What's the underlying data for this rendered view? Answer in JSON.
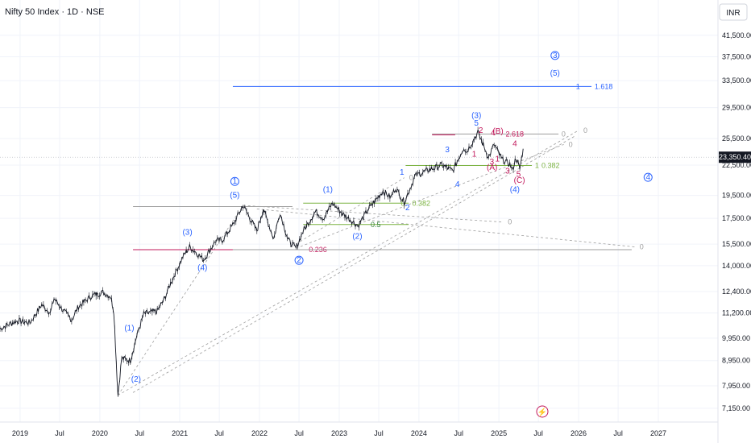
{
  "header": {
    "title": "Nifty 50 Index · 1D · NSE",
    "currency": "INR"
  },
  "colors": {
    "price": "#131722",
    "blue": "#2962ff",
    "red": "#c2185b",
    "green": "#7cb342",
    "gray": "#9e9e9e"
  },
  "chart_data": {
    "type": "line",
    "scale": "log",
    "ylim": [
      6700,
      49000
    ],
    "xlim": [
      "2018-10-01",
      "2027-10-01"
    ],
    "current_price": "23,350.40",
    "current_value": 23350.4,
    "y_ticks": [
      {
        "v": 41500,
        "label": "41,500.00"
      },
      {
        "v": 37500,
        "label": "37,500.00"
      },
      {
        "v": 33500,
        "label": "33,500.00"
      },
      {
        "v": 29500,
        "label": "29,500.00"
      },
      {
        "v": 25500,
        "label": "25,500.00"
      },
      {
        "v": 22500,
        "label": "22,500.00"
      },
      {
        "v": 19500,
        "label": "19,500.00"
      },
      {
        "v": 17500,
        "label": "17,500.00"
      },
      {
        "v": 15500,
        "label": "15,500.00"
      },
      {
        "v": 14000,
        "label": "14,000.00"
      },
      {
        "v": 12400,
        "label": "12,400.00"
      },
      {
        "v": 11200,
        "label": "11,200.00"
      },
      {
        "v": 9950,
        "label": "9,950.00"
      },
      {
        "v": 8950,
        "label": "8,950.00"
      },
      {
        "v": 7950,
        "label": "7,950.00"
      },
      {
        "v": 7150,
        "label": "7,150.00"
      }
    ],
    "x_ticks": [
      {
        "d": "2019-01-01",
        "label": "2019"
      },
      {
        "d": "2019-07-01",
        "label": "Jul"
      },
      {
        "d": "2020-01-01",
        "label": "2020"
      },
      {
        "d": "2020-07-01",
        "label": "Jul"
      },
      {
        "d": "2021-01-01",
        "label": "2021"
      },
      {
        "d": "2021-07-01",
        "label": "Jul"
      },
      {
        "d": "2022-01-01",
        "label": "2022"
      },
      {
        "d": "2022-07-01",
        "label": "Jul"
      },
      {
        "d": "2023-01-01",
        "label": "2023"
      },
      {
        "d": "2023-07-01",
        "label": "Jul"
      },
      {
        "d": "2024-01-01",
        "label": "2024"
      },
      {
        "d": "2024-07-01",
        "label": "Jul"
      },
      {
        "d": "2025-01-01",
        "label": "2025"
      },
      {
        "d": "2025-07-01",
        "label": "Jul"
      },
      {
        "d": "2026-01-01",
        "label": "2026"
      },
      {
        "d": "2026-07-01",
        "label": "Jul"
      },
      {
        "d": "2027-01-01",
        "label": "2027"
      }
    ],
    "price_path": [
      [
        "2018-10-01",
        10400
      ],
      [
        "2018-11-15",
        10650
      ],
      [
        "2018-12-20",
        10800
      ],
      [
        "2019-02-15",
        10700
      ],
      [
        "2019-04-10",
        11650
      ],
      [
        "2019-05-20",
        11200
      ],
      [
        "2019-06-05",
        12000
      ],
      [
        "2019-07-20",
        11300
      ],
      [
        "2019-08-25",
        10850
      ],
      [
        "2019-09-25",
        11550
      ],
      [
        "2019-11-25",
        12150
      ],
      [
        "2020-01-15",
        12350
      ],
      [
        "2020-02-20",
        12100
      ],
      [
        "2020-03-05",
        11300
      ],
      [
        "2020-03-24",
        7600
      ],
      [
        "2020-04-10",
        9050
      ],
      [
        "2020-05-20",
        8950
      ],
      [
        "2020-06-15",
        9950
      ],
      [
        "2020-07-20",
        11150
      ],
      [
        "2020-09-20",
        11300
      ],
      [
        "2020-10-20",
        11900
      ],
      [
        "2020-11-20",
        12900
      ],
      [
        "2021-01-15",
        14600
      ],
      [
        "2021-02-15",
        15300
      ],
      [
        "2021-03-10",
        15000
      ],
      [
        "2021-04-20",
        14400
      ],
      [
        "2021-06-15",
        15750
      ],
      [
        "2021-07-15",
        15800
      ],
      [
        "2021-08-30",
        16900
      ],
      [
        "2021-10-18",
        18600
      ],
      [
        "2021-12-20",
        16500
      ],
      [
        "2022-01-18",
        18300
      ],
      [
        "2022-03-07",
        15900
      ],
      [
        "2022-04-05",
        18000
      ],
      [
        "2022-05-12",
        15800
      ],
      [
        "2022-06-17",
        15200
      ],
      [
        "2022-07-20",
        16500
      ],
      [
        "2022-09-15",
        18100
      ],
      [
        "2022-10-20",
        17500
      ],
      [
        "2022-12-01",
        18800
      ],
      [
        "2023-01-15",
        17900
      ],
      [
        "2023-02-28",
        17300
      ],
      [
        "2023-03-28",
        16900
      ],
      [
        "2023-05-15",
        18300
      ],
      [
        "2023-07-20",
        19900
      ],
      [
        "2023-08-25",
        19300
      ],
      [
        "2023-09-15",
        20200
      ],
      [
        "2023-10-26",
        18900
      ],
      [
        "2023-12-15",
        21400
      ],
      [
        "2024-02-15",
        22000
      ],
      [
        "2024-04-15",
        22500
      ],
      [
        "2024-06-04",
        21900
      ],
      [
        "2024-07-25",
        24500
      ],
      [
        "2024-08-05",
        23900
      ],
      [
        "2024-09-27",
        26280
      ],
      [
        "2024-11-15",
        23300
      ],
      [
        "2024-12-10",
        24800
      ],
      [
        "2025-01-15",
        23100
      ],
      [
        "2025-02-20",
        22600
      ],
      [
        "2025-03-04",
        21950
      ],
      [
        "2025-03-20",
        23300
      ],
      [
        "2025-04-07",
        22100
      ],
      [
        "2025-04-22",
        24300
      ]
    ],
    "h_levels": [
      {
        "name": "fib-1618-line",
        "y": 32600,
        "x1": "2021-09-01",
        "x2": "2026-03-01",
        "color": "#2962ff",
        "label": "1.618",
        "lx": "2026-03-15",
        "lcolor": "#2962ff",
        "tick": "1",
        "tx": "2025-12-20"
      },
      {
        "name": "fib-2618-line",
        "y": 26050,
        "x1": "2024-03-01",
        "x2": "2025-10-01",
        "color": "#9e9e9e",
        "label": "2.618",
        "lx": "2025-02-01",
        "lcolor": "#c2185b",
        "tick": "0",
        "tx": "2025-10-15",
        "red_segment": [
          "2024-03-01",
          "2024-06-15"
        ]
      },
      {
        "name": "fib-0382-top-line",
        "y": 22450,
        "x1": "2023-11-01",
        "x2": "2025-06-01",
        "color": "#7cb342",
        "label": "0.382",
        "lx": "2025-07-15",
        "lcolor": "#7cb342",
        "tick": "1",
        "tx": "2025-06-15"
      },
      {
        "name": "fib-0382-mid-line",
        "y": 18800,
        "x1": "2022-07-20",
        "x2": "2023-11-15",
        "color": "#7cb342",
        "label": "0.382",
        "lx": "2023-12-01",
        "lcolor": "#7cb342",
        "tick": "0",
        "tx": "2023-10-10"
      },
      {
        "name": "fib-05-line",
        "y": 17000,
        "x1": "2022-07-20",
        "x2": "2023-11-15",
        "color": "#7cb342",
        "label": "0.5",
        "lx": "2023-05-25",
        "lcolor": "#2e7d32",
        "tick": "",
        "tx": ""
      },
      {
        "name": "fib-0236-line",
        "y": 15100,
        "x1": "2020-06-01",
        "x2": "2021-09-01",
        "color": "#c2185b",
        "label": "0.236",
        "lx": "2022-08-15",
        "lcolor": "#c2185b",
        "tick": "",
        "tx": ""
      },
      {
        "name": "upper-gray-level",
        "y": 18500,
        "x1": "2020-06-01",
        "x2": "2022-06-01",
        "color": "#9e9e9e",
        "label": "",
        "lx": "",
        "lcolor": "",
        "tick": "",
        "tx": ""
      },
      {
        "name": "lower-gray-level",
        "y": 15100,
        "x1": "2021-09-01",
        "x2": "2026-09-01",
        "color": "#9e9e9e",
        "label": "",
        "lx": "",
        "lcolor": "",
        "tick": "",
        "tx": ""
      }
    ],
    "trend_lines": [
      {
        "name": "channel-top",
        "p1": [
          "2020-03-24",
          7600
        ],
        "p2": [
          "2026-01-01",
          26500
        ],
        "tick": "0"
      },
      {
        "name": "channel-mid",
        "p1": [
          "2020-03-24",
          7600
        ],
        "p2": [
          "2021-10-18",
          18600
        ],
        "tick": ""
      },
      {
        "name": "channel-low",
        "p1": [
          "2020-06-01",
          7700
        ],
        "p2": [
          "2025-12-15",
          25800
        ],
        "tick": ""
      },
      {
        "name": "wave2-fan-a",
        "p1": [
          "2021-10-18",
          18600
        ],
        "p2": [
          "2025-01-20",
          17200
        ],
        "tick": "0"
      },
      {
        "name": "wave2-fan-b",
        "p1": [
          "2021-12-20",
          18300
        ],
        "p2": [
          "2026-09-15",
          15300
        ],
        "tick": "0"
      },
      {
        "name": "wave-1-channel",
        "p1": [
          "2022-06-17",
          15200
        ],
        "p2": [
          "2025-10-25",
          24800
        ],
        "tick": "0"
      },
      {
        "name": "wave-2-channel",
        "p1": [
          "2022-06-17",
          15500
        ],
        "p2": [
          "2023-10-26",
          21200
        ],
        "tick": "0"
      }
    ],
    "wave_labels": [
      {
        "t": "1",
        "d": "2021-09-10",
        "y": 20600,
        "c": "#2962ff",
        "circle": true
      },
      {
        "t": "(5)",
        "d": "2021-09-10",
        "y": 19300,
        "c": "#2962ff",
        "circle": false
      },
      {
        "t": "(3)",
        "d": "2021-02-05",
        "y": 16200,
        "c": "#2962ff",
        "circle": false
      },
      {
        "t": "(4)",
        "d": "2021-04-15",
        "y": 13700,
        "c": "#2962ff",
        "circle": false
      },
      {
        "t": "(1)",
        "d": "2020-05-15",
        "y": 10300,
        "c": "#2962ff",
        "circle": false
      },
      {
        "t": "(2)",
        "d": "2020-06-15",
        "y": 8100,
        "c": "#2962ff",
        "circle": false
      },
      {
        "t": "2",
        "d": "2022-07-01",
        "y": 14200,
        "c": "#2962ff",
        "circle": true
      },
      {
        "t": "(1)",
        "d": "2022-11-10",
        "y": 19800,
        "c": "#2962ff",
        "circle": false
      },
      {
        "t": "(2)",
        "d": "2023-03-25",
        "y": 15900,
        "c": "#2962ff",
        "circle": false
      },
      {
        "t": "1",
        "d": "2023-10-15",
        "y": 21500,
        "c": "#2962ff",
        "circle": false
      },
      {
        "t": "2",
        "d": "2023-11-10",
        "y": 18200,
        "c": "#2962ff",
        "circle": false
      },
      {
        "t": "3",
        "d": "2024-05-10",
        "y": 23900,
        "c": "#2962ff",
        "circle": false
      },
      {
        "t": "4",
        "d": "2024-06-25",
        "y": 20300,
        "c": "#2962ff",
        "circle": false
      },
      {
        "t": "(3)",
        "d": "2024-09-20",
        "y": 28100,
        "c": "#2962ff",
        "circle": false
      },
      {
        "t": "5",
        "d": "2024-09-20",
        "y": 27100,
        "c": "#2962ff",
        "circle": false
      },
      {
        "t": "(4)",
        "d": "2025-03-15",
        "y": 19800,
        "c": "#2962ff",
        "circle": false
      },
      {
        "t": "(5)",
        "d": "2025-09-15",
        "y": 34300,
        "c": "#2962ff",
        "circle": false
      },
      {
        "t": "3",
        "d": "2025-09-15",
        "y": 37300,
        "c": "#2962ff",
        "circle": true
      },
      {
        "t": "4",
        "d": "2026-11-15",
        "y": 21000,
        "c": "#2962ff",
        "circle": true
      },
      {
        "t": "2",
        "d": "2024-10-10",
        "y": 26200,
        "c": "#c2185b",
        "circle": false
      },
      {
        "t": "4",
        "d": "2024-12-05",
        "y": 25900,
        "c": "#c2185b",
        "circle": false
      },
      {
        "t": "(B)",
        "d": "2024-12-28",
        "y": 26100,
        "c": "#c2185b",
        "circle": false
      },
      {
        "t": "1",
        "d": "2024-09-10",
        "y": 23400,
        "c": "#c2185b",
        "circle": false
      },
      {
        "t": "1",
        "d": "2024-12-25",
        "y": 22900,
        "c": "#c2185b",
        "circle": false
      },
      {
        "t": "3",
        "d": "2024-11-30",
        "y": 22600,
        "c": "#c2185b",
        "circle": false
      },
      {
        "t": "(A)",
        "d": "2024-12-01",
        "y": 22000,
        "c": "#c2185b",
        "circle": false
      },
      {
        "t": "4",
        "d": "2025-03-15",
        "y": 24600,
        "c": "#c2185b",
        "circle": false
      },
      {
        "t": "3",
        "d": "2025-02-10",
        "y": 21600,
        "c": "#c2185b",
        "circle": false
      },
      {
        "t": "5",
        "d": "2025-04-01",
        "y": 21300,
        "c": "#c2185b",
        "circle": false
      },
      {
        "t": "(C)",
        "d": "2025-04-05",
        "y": 20700,
        "c": "#c2185b",
        "circle": false
      }
    ]
  }
}
